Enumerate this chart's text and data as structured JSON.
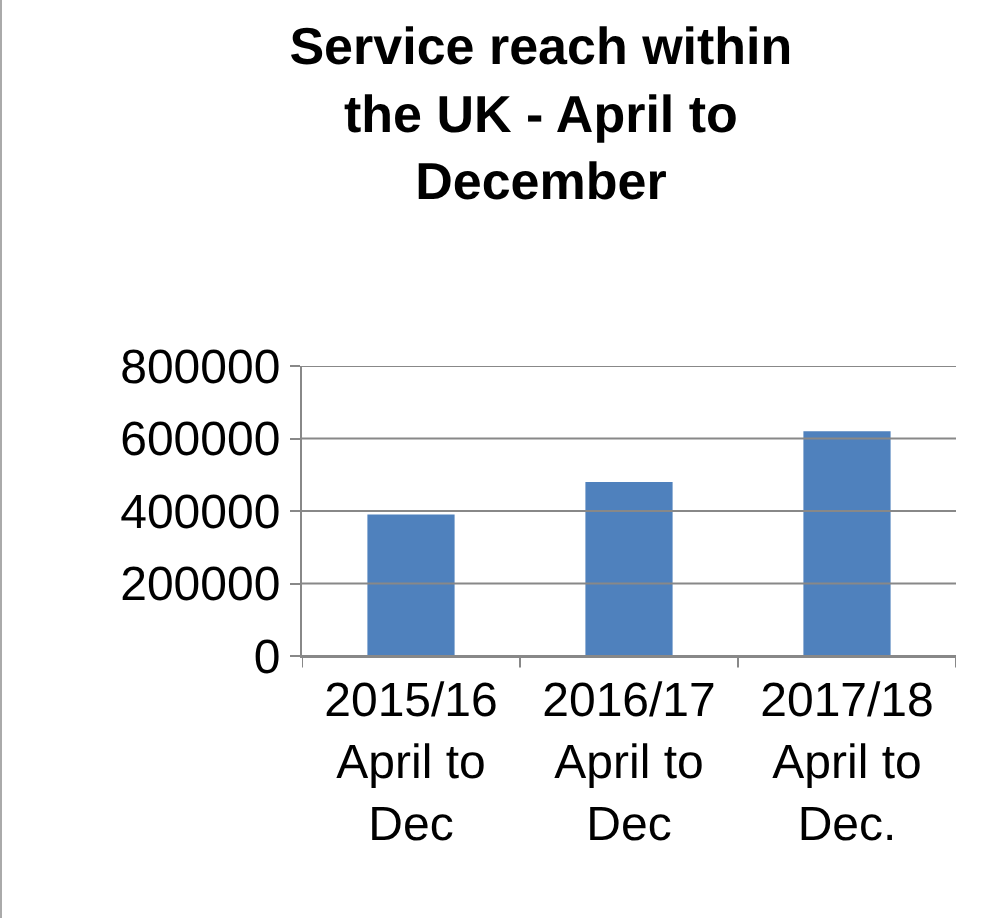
{
  "chart_data": {
    "type": "bar",
    "title": "Service reach within\nthe UK - April to\nDecember",
    "categories": [
      "2015/16\nApril to\nDec",
      "2016/17\nApril to\nDec",
      "2017/18\nApril to\nDec."
    ],
    "values": [
      390000,
      480000,
      620000
    ],
    "color": "#4f81bd",
    "ylim": [
      0,
      800000
    ],
    "yticks": [
      0,
      200000,
      400000,
      600000,
      800000
    ],
    "grid": "y",
    "legend": false
  }
}
